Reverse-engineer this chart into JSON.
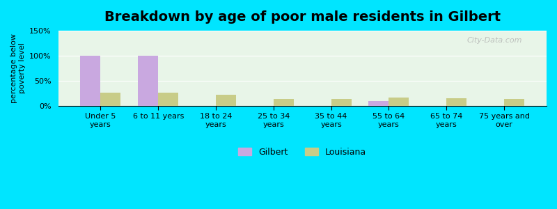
{
  "title": "Breakdown by age of poor male residents in Gilbert",
  "ylabel": "percentage below\npoverty level",
  "categories": [
    "Under 5\nyears",
    "6 to 11 years",
    "18 to 24\nyears",
    "25 to 34\nyears",
    "35 to 44\nyears",
    "55 to 64\nyears",
    "65 to 74\nyears",
    "75 years and\nover"
  ],
  "gilbert_values": [
    100,
    100,
    0,
    0,
    0,
    10,
    0,
    0
  ],
  "louisiana_values": [
    26,
    26,
    22,
    14,
    13,
    16,
    15,
    13
  ],
  "gilbert_color": "#c9a8e0",
  "louisiana_color": "#c8cc88",
  "ylim": [
    0,
    150
  ],
  "yticks": [
    0,
    50,
    100,
    150
  ],
  "ytick_labels": [
    "0%",
    "50%",
    "100%",
    "150%"
  ],
  "background_color": "#e8f5e8",
  "background_gradient_top": "#e0f0f8",
  "bar_width": 0.35,
  "title_fontsize": 14,
  "axis_fontsize": 8,
  "legend_labels": [
    "Gilbert",
    "Louisiana"
  ],
  "watermark": "City-Data.com"
}
